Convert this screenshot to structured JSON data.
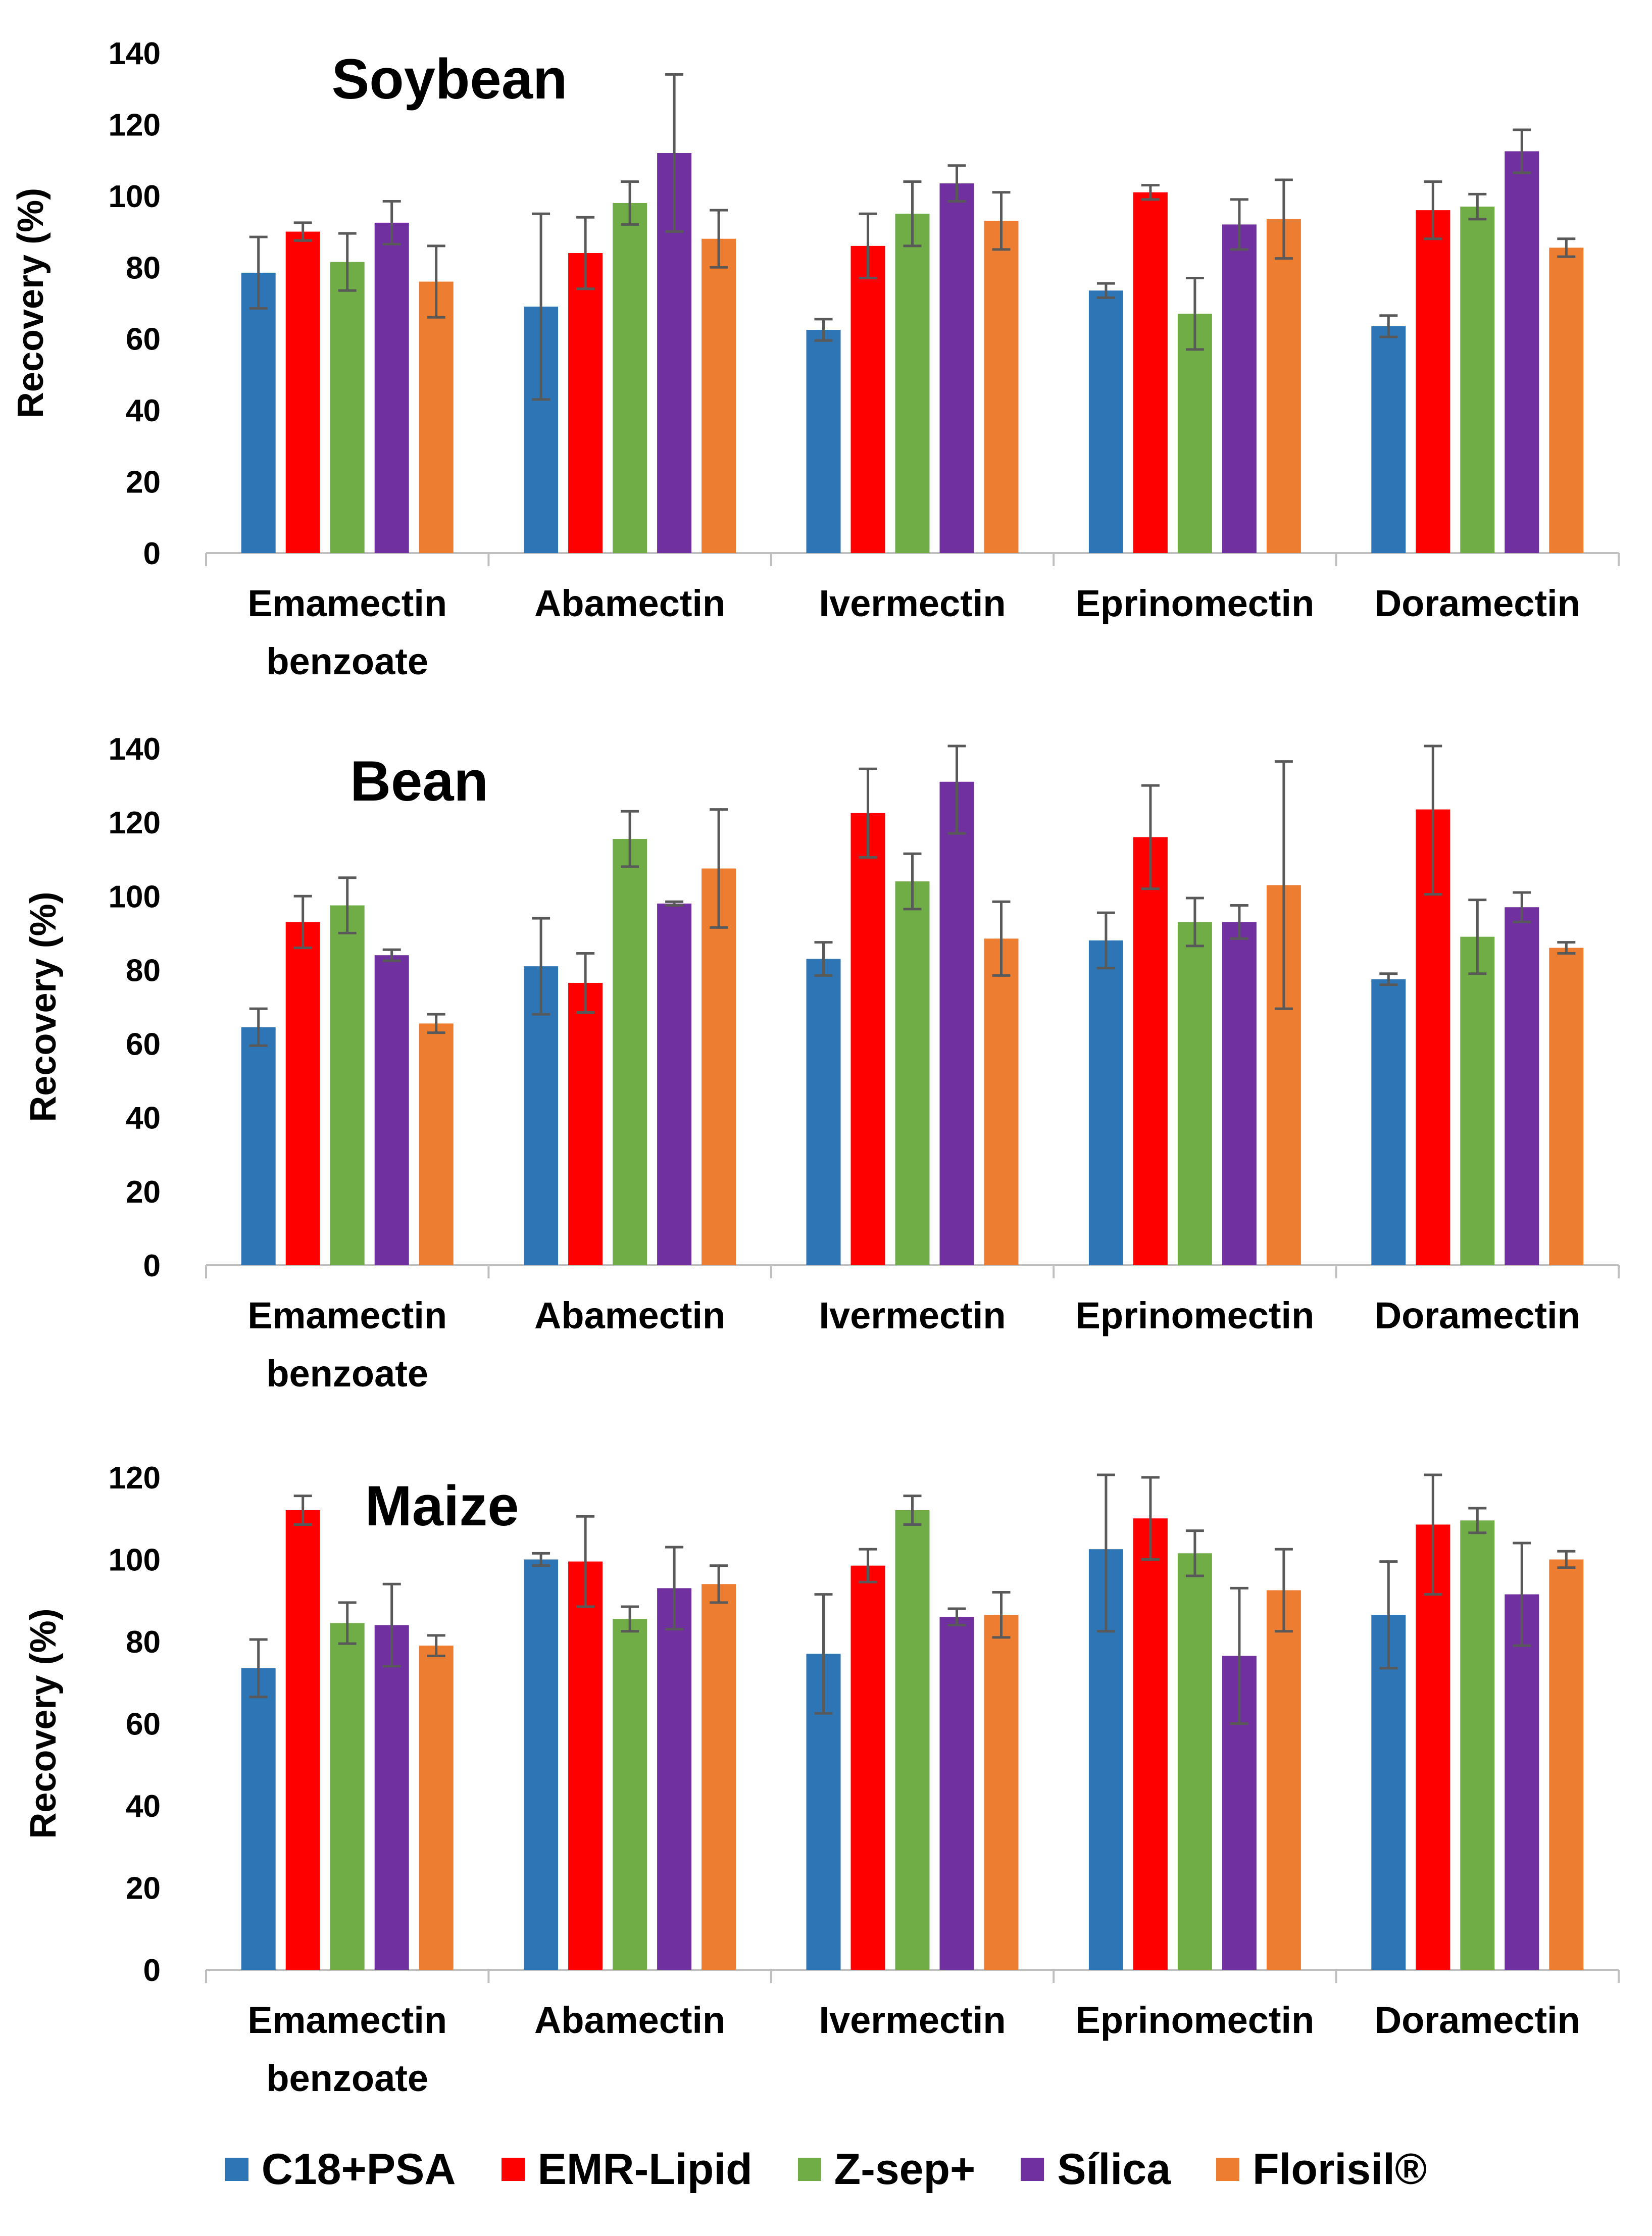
{
  "colors": [
    "#2E75B6",
    "#FF0000",
    "#70AD47",
    "#7030A0",
    "#ED7D31"
  ],
  "legend": [
    "C18+PSA",
    "EMR-Lipid",
    "Z-sep+",
    "Sílica",
    "Florisil®"
  ],
  "chart_data": [
    {
      "type": "bar",
      "title": "Soybean",
      "ylabel": "Recovery (%)",
      "ylim": [
        0,
        140
      ],
      "yticks": [
        0,
        20,
        40,
        60,
        80,
        100,
        120,
        140
      ],
      "categories": [
        "Emamectin benzoate",
        "Abamectin",
        "Ivermectin",
        "Eprinomectin",
        "Doramectin"
      ],
      "category_lines": [
        [
          "Emamectin",
          "benzoate"
        ],
        [
          "Abamectin"
        ],
        [
          "Ivermectin"
        ],
        [
          "Eprinomectin"
        ],
        [
          "Doramectin"
        ]
      ],
      "series": [
        {
          "name": "C18+PSA",
          "values": [
            78.5,
            69,
            62.5,
            73.5,
            63.5
          ],
          "errors": [
            10,
            26,
            3,
            2,
            3
          ]
        },
        {
          "name": "EMR-Lipid",
          "values": [
            90,
            84,
            86,
            101,
            96
          ],
          "errors": [
            2.5,
            10,
            9,
            2,
            8
          ]
        },
        {
          "name": "Z-sep+",
          "values": [
            81.5,
            98,
            95,
            67,
            97
          ],
          "errors": [
            8,
            6,
            9,
            10,
            3.5
          ]
        },
        {
          "name": "Sílica",
          "values": [
            92.5,
            112,
            103.5,
            92,
            112.5
          ],
          "errors": [
            6,
            22,
            5,
            7,
            6
          ]
        },
        {
          "name": "Florisil®",
          "values": [
            76,
            88,
            93,
            93.5,
            85.5
          ],
          "errors": [
            10,
            8,
            8,
            11,
            2.5
          ]
        }
      ]
    },
    {
      "type": "bar",
      "title": "Bean",
      "ylabel": "Recovery (%)",
      "ylim": [
        0,
        140
      ],
      "yticks": [
        0,
        20,
        40,
        60,
        80,
        100,
        120,
        140
      ],
      "categories": [
        "Emamectin benzoate",
        "Abamectin",
        "Ivermectin",
        "Eprinomectin",
        "Doramectin"
      ],
      "category_lines": [
        [
          "Emamectin",
          "benzoate"
        ],
        [
          "Abamectin"
        ],
        [
          "Ivermectin"
        ],
        [
          "Eprinomectin"
        ],
        [
          "Doramectin"
        ]
      ],
      "series": [
        {
          "name": "C18+PSA",
          "values": [
            64.5,
            81,
            83,
            88,
            77.5
          ],
          "errors": [
            5,
            13,
            4.5,
            7.5,
            1.5
          ]
        },
        {
          "name": "EMR-Lipid",
          "values": [
            93,
            76.5,
            122.5,
            116,
            123.5
          ],
          "errors": [
            7,
            8,
            12,
            14,
            23
          ]
        },
        {
          "name": "Z-sep+",
          "values": [
            97.5,
            115.5,
            104,
            93,
            89
          ],
          "errors": [
            7.5,
            7.5,
            7.5,
            6.5,
            10
          ]
        },
        {
          "name": "Sílica",
          "values": [
            84,
            98,
            131,
            93,
            97
          ],
          "errors": [
            1.5,
            0.5,
            14,
            4.5,
            4
          ]
        },
        {
          "name": "Florisil®",
          "values": [
            65.5,
            107.5,
            88.5,
            103,
            86
          ],
          "errors": [
            2.5,
            16,
            10,
            33.5,
            1.5
          ]
        }
      ]
    },
    {
      "type": "bar",
      "title": "Maize",
      "ylabel": "Recovery (%)",
      "ylim": [
        0,
        120
      ],
      "yticks": [
        0,
        20,
        40,
        60,
        80,
        100,
        120
      ],
      "categories": [
        "Emamectin benzoate",
        "Abamectin",
        "Ivermectin",
        "Eprinomectin",
        "Doramectin"
      ],
      "category_lines": [
        [
          "Emamectin",
          "benzoate"
        ],
        [
          "Abamectin"
        ],
        [
          "Ivermectin"
        ],
        [
          "Eprinomectin"
        ],
        [
          "Doramectin"
        ]
      ],
      "series": [
        {
          "name": "C18+PSA",
          "values": [
            73.5,
            100,
            77,
            102.5,
            86.5
          ],
          "errors": [
            7,
            1.5,
            14.5,
            20,
            13
          ]
        },
        {
          "name": "EMR-Lipid",
          "values": [
            112,
            99.5,
            98.5,
            110,
            108.5
          ],
          "errors": [
            3.5,
            11,
            4,
            10,
            17
          ]
        },
        {
          "name": "Z-sep+",
          "values": [
            84.5,
            85.5,
            112,
            101.5,
            109.5
          ],
          "errors": [
            5,
            3,
            3.5,
            5.5,
            3
          ]
        },
        {
          "name": "Sílica",
          "values": [
            84,
            93,
            86,
            76.5,
            91.5
          ],
          "errors": [
            10,
            10,
            2,
            16.5,
            12.5
          ]
        },
        {
          "name": "Florisil®",
          "values": [
            79,
            94,
            86.5,
            92.5,
            100
          ],
          "errors": [
            2.5,
            4.5,
            5.5,
            10,
            2
          ]
        }
      ]
    }
  ]
}
